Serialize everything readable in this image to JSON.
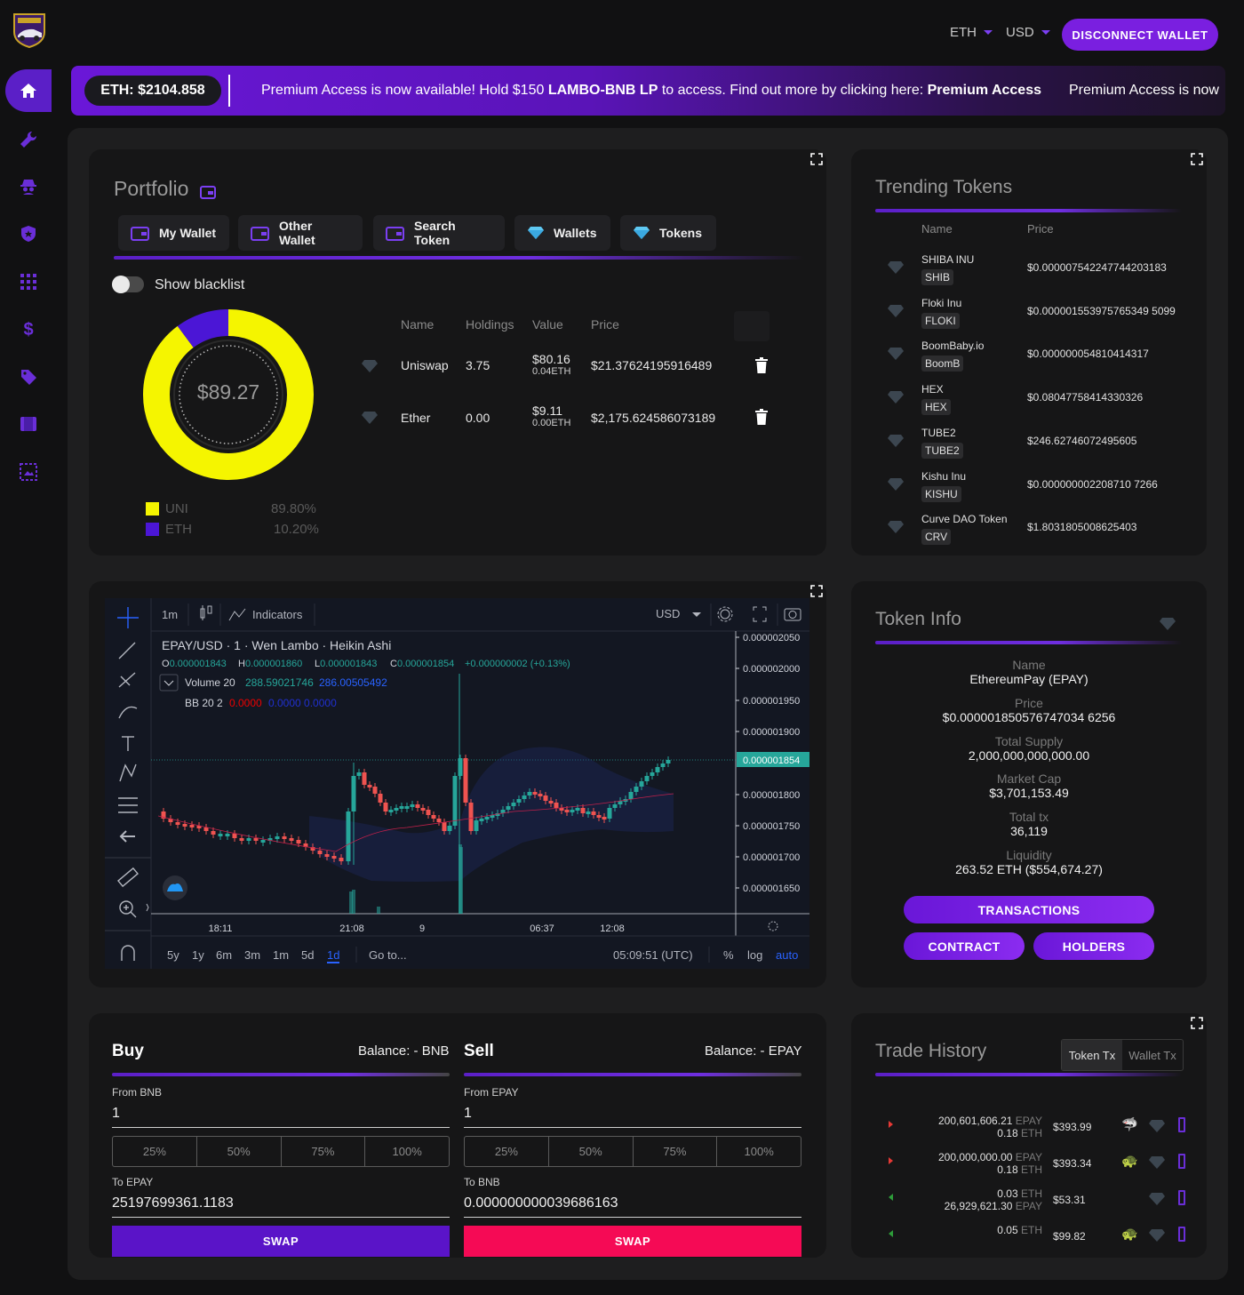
{
  "header": {
    "currencies": [
      "ETH",
      "USD"
    ],
    "disconnect_label": "DISCONNECT WALLET"
  },
  "banner": {
    "eth_price": "ETH: $2104.858",
    "msg_part1": "Premium Access is now available! Hold $150 ",
    "msg_bold1": "LAMBO-BNB LP",
    "msg_part2": " to access. Find out more by clicking here: ",
    "msg_bold2": "Premium Access",
    "msg_repeat": "Premium Access is now"
  },
  "sidebar": {
    "icons": [
      "home-icon",
      "wrench-icon",
      "spy-icon",
      "shield-icon",
      "grid-icon",
      "dollar-icon",
      "tag-icon",
      "film-icon",
      "image-icon"
    ]
  },
  "portfolio": {
    "title": "Portfolio",
    "tabs": [
      "My Wallet",
      "Other Wallet",
      "Search Token",
      "Wallets",
      "Tokens"
    ],
    "show_blacklist": "Show blacklist",
    "total": "$89.27",
    "columns": [
      "Name",
      "Holdings",
      "Value",
      "Price"
    ],
    "rows": [
      {
        "name": "Uniswap",
        "holdings": "3.75",
        "value": "$80.16",
        "value_eth": "0.04ETH",
        "price": "$21.37624195916489"
      },
      {
        "name": "Ether",
        "holdings": "0.00",
        "value": "$9.11",
        "value_eth": "0.00ETH",
        "price": "$2,175.624586073189"
      }
    ],
    "legend": [
      {
        "label": "UNI",
        "pct": "89.80%",
        "fraction": 0.898,
        "color": "#f5f500"
      },
      {
        "label": "ETH",
        "pct": "10.20%",
        "fraction": 0.102,
        "color": "#4b16d6"
      }
    ]
  },
  "trending": {
    "title": "Trending Tokens",
    "columns": [
      "Name",
      "Price"
    ],
    "rows": [
      {
        "name": "SHIBA INU",
        "symbol": "SHIB",
        "price": "$0.000007542247744203183"
      },
      {
        "name": "Floki Inu",
        "symbol": "FLOKI",
        "price": "$0.000001553975765349 5099"
      },
      {
        "name": "BoomBaby.io",
        "symbol": "BoomB",
        "price": "$0.000000054810414317"
      },
      {
        "name": "HEX",
        "symbol": "HEX",
        "price": "$0.08047758414330326"
      },
      {
        "name": "TUBE2",
        "symbol": "TUBE2",
        "price": "$246.62746072495605"
      },
      {
        "name": "Kishu Inu",
        "symbol": "KISHU",
        "price": "$0.000000002208710 7266"
      },
      {
        "name": "Curve DAO Token",
        "symbol": "CRV",
        "price": "$1.8031805008625403"
      }
    ]
  },
  "chart": {
    "interval": "1m",
    "indicators": "Indicators",
    "currency": "USD",
    "symbol_line": "EPAY/USD · 1 · Wen Lambo · Heikin Ashi",
    "ohlc": {
      "o": "0.000001843",
      "h": "0.000001860",
      "l": "0.000001843",
      "c": "0.000001854",
      "chg": "+0.000000002 (+0.13%)"
    },
    "volume_line": "Volume 20",
    "volume_v1": "288.59021746",
    "volume_v2": "286.00505492",
    "bb_line": "BB 20 2",
    "bb_v1": "0.0000",
    "bb_v2": "0.0000 0.0000",
    "y_ticks": [
      "0.000002050",
      "0.000002000",
      "0.000001950",
      "0.000001900",
      "0.000001850",
      "0.000001800",
      "0.000001750",
      "0.000001700",
      "0.000001650"
    ],
    "last_price": "0.000001854",
    "x_ticks": [
      "18:11",
      "21:08",
      "9",
      "06:37",
      "12:08"
    ],
    "ranges": [
      "5y",
      "1y",
      "6m",
      "3m",
      "1m",
      "5d",
      "1d"
    ],
    "active_range": "1d",
    "goto": "Go to...",
    "clock": "05:09:51 (UTC)",
    "opts": [
      "%",
      "log",
      "auto"
    ]
  },
  "token_info": {
    "title": "Token Info",
    "fields": [
      {
        "label": "Name",
        "value": "EthereumPay (EPAY)"
      },
      {
        "label": "Price",
        "value": "$0.000001850576747034 6256"
      },
      {
        "label": "Total Supply",
        "value": "2,000,000,000,000.00"
      },
      {
        "label": "Market Cap",
        "value": "$3,701,153.49"
      },
      {
        "label": "Total tx",
        "value": "36,119"
      },
      {
        "label": "Liquidity",
        "value": "263.52 ETH ($554,674.27)"
      }
    ],
    "btn_transactions": "TRANSACTIONS",
    "btn_contract": "CONTRACT",
    "btn_holders": "HOLDERS"
  },
  "buy": {
    "title": "Buy",
    "balance": "Balance: - BNB",
    "from_label": "From BNB",
    "from_value": "1",
    "pcts": [
      "25%",
      "50%",
      "75%",
      "100%"
    ],
    "to_label": "To EPAY",
    "to_value": "25197699361.1183",
    "swap": "SWAP"
  },
  "sell": {
    "title": "Sell",
    "balance": "Balance: - EPAY",
    "from_label": "From EPAY",
    "from_value": "1",
    "pcts": [
      "25%",
      "50%",
      "75%",
      "100%"
    ],
    "to_label": "To BNB",
    "to_value": "0.000000000039686163",
    "swap": "SWAP"
  },
  "trade_history": {
    "title": "Trade History",
    "tabs": [
      "Token Tx",
      "Wallet Tx"
    ],
    "rows": [
      {
        "l1": "200,601,606.21",
        "u1": "EPAY",
        "l2": "0.18",
        "u2": "ETH",
        "usd": "$393.99",
        "side": "sell"
      },
      {
        "l1": "200,000,000.00",
        "u1": "EPAY",
        "l2": "0.18",
        "u2": "ETH",
        "usd": "$393.34",
        "side": "sell"
      },
      {
        "l1": "0.03",
        "u1": "ETH",
        "l2": "26,929,621.30",
        "u2": "EPAY",
        "usd": "$53.31",
        "side": "buy"
      },
      {
        "l1": "0.05",
        "u1": "ETH",
        "l2": "",
        "u2": "",
        "usd": "$99.82",
        "side": "buy"
      }
    ]
  },
  "colors": {
    "accent": "#7a1fe0",
    "buy_swap": "#5a14c8",
    "sell_swap": "#f50a55",
    "up": "#26a69a",
    "down": "#ef5350"
  }
}
